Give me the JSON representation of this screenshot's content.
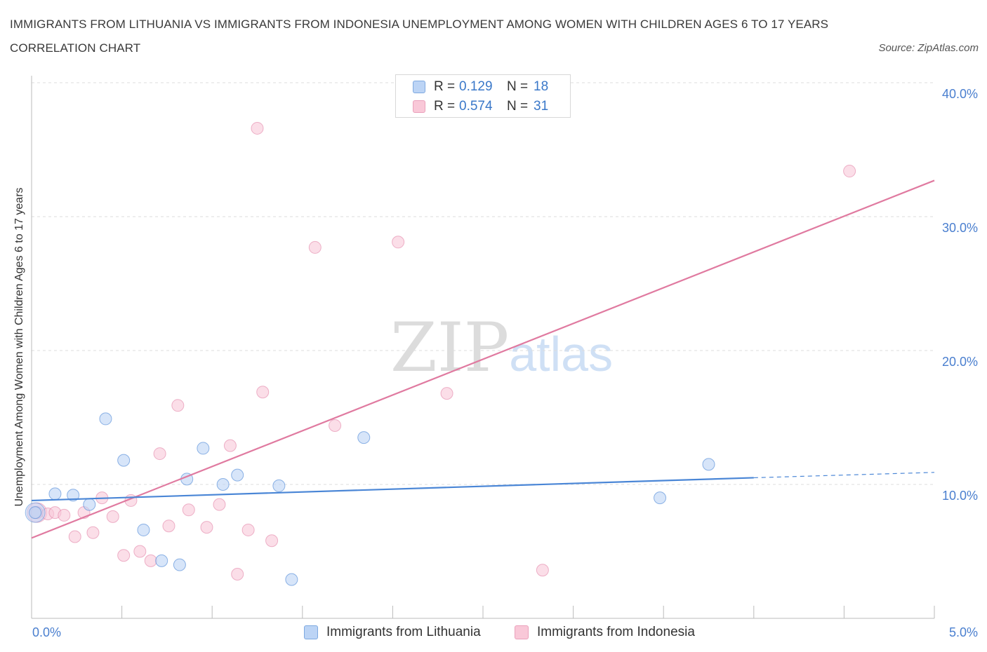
{
  "title": "IMMIGRANTS FROM LITHUANIA VS IMMIGRANTS FROM INDONESIA UNEMPLOYMENT AMONG WOMEN WITH CHILDREN AGES 6 TO 17 YEARS CORRELATION CHART",
  "source": "Source: ZipAtlas.com",
  "watermark": {
    "zip": "ZIP",
    "atlas": "atlas"
  },
  "colors": {
    "lithuania": "#4a86d6",
    "lithuania_fill": "#bcd4f5",
    "indonesia": "#e07aa0",
    "indonesia_fill": "#f9c8d8",
    "axis_text": "#4a7fcf",
    "grid": "#dddddd"
  },
  "legend": {
    "rows": [
      {
        "r_label": "R = ",
        "r_value": "0.129",
        "n_label": "N = ",
        "n_value": "18"
      },
      {
        "r_label": "R = ",
        "r_value": "0.574",
        "n_label": "N = ",
        "n_value": "31"
      }
    ]
  },
  "bottom_legend": {
    "lithuania": "Immigrants from Lithuania",
    "indonesia": "Immigrants from Indonesia"
  },
  "chart_data": {
    "type": "scatter",
    "title": "IMMIGRANTS FROM LITHUANIA VS IMMIGRANTS FROM INDONESIA UNEMPLOYMENT AMONG WOMEN WITH CHILDREN AGES 6 TO 17 YEARS CORRELATION CHART",
    "xlabel": "",
    "ylabel": "Unemployment Among Women with Children Ages 6 to 17 years",
    "xlim": [
      0,
      5
    ],
    "ylim": [
      0,
      40
    ],
    "x_tick_labels": [
      "0.0%",
      "5.0%"
    ],
    "y_ticks": [
      10,
      20,
      30,
      40
    ],
    "y_tick_labels": [
      "10.0%",
      "20.0%",
      "30.0%",
      "40.0%"
    ],
    "grid": true,
    "legend_position": "top-center",
    "series": [
      {
        "name": "Immigrants from Lithuania",
        "R": 0.129,
        "N": 18,
        "points": [
          {
            "x": 0.02,
            "y": 7.9
          },
          {
            "x": 0.13,
            "y": 9.3
          },
          {
            "x": 0.23,
            "y": 9.2
          },
          {
            "x": 0.32,
            "y": 8.5
          },
          {
            "x": 0.41,
            "y": 14.9
          },
          {
            "x": 0.51,
            "y": 11.8
          },
          {
            "x": 0.62,
            "y": 6.6
          },
          {
            "x": 0.72,
            "y": 4.3
          },
          {
            "x": 0.82,
            "y": 4.0
          },
          {
            "x": 0.86,
            "y": 10.4
          },
          {
            "x": 0.95,
            "y": 12.7
          },
          {
            "x": 1.06,
            "y": 10.0
          },
          {
            "x": 1.14,
            "y": 10.7
          },
          {
            "x": 1.37,
            "y": 9.9
          },
          {
            "x": 1.44,
            "y": 2.9
          },
          {
            "x": 1.84,
            "y": 13.5
          },
          {
            "x": 3.48,
            "y": 9.0
          },
          {
            "x": 3.75,
            "y": 11.5
          }
        ],
        "trend": {
          "x": [
            0.0,
            4.0
          ],
          "y": [
            8.8,
            10.5
          ]
        },
        "trend_dashed": {
          "x": [
            4.0,
            5.0
          ],
          "y": [
            10.5,
            10.9
          ]
        }
      },
      {
        "name": "Immigrants from Indonesia",
        "R": 0.574,
        "N": 31,
        "points": [
          {
            "x": 0.03,
            "y": 7.9
          },
          {
            "x": 0.09,
            "y": 7.8
          },
          {
            "x": 0.13,
            "y": 7.9
          },
          {
            "x": 0.18,
            "y": 7.7
          },
          {
            "x": 0.24,
            "y": 6.1
          },
          {
            "x": 0.29,
            "y": 7.9
          },
          {
            "x": 0.34,
            "y": 6.4
          },
          {
            "x": 0.39,
            "y": 9.0
          },
          {
            "x": 0.45,
            "y": 7.6
          },
          {
            "x": 0.51,
            "y": 4.7
          },
          {
            "x": 0.55,
            "y": 8.8
          },
          {
            "x": 0.6,
            "y": 5.0
          },
          {
            "x": 0.66,
            "y": 4.3
          },
          {
            "x": 0.71,
            "y": 12.3
          },
          {
            "x": 0.76,
            "y": 6.9
          },
          {
            "x": 0.81,
            "y": 15.9
          },
          {
            "x": 0.87,
            "y": 8.1
          },
          {
            "x": 0.97,
            "y": 6.8
          },
          {
            "x": 1.04,
            "y": 8.5
          },
          {
            "x": 1.1,
            "y": 12.9
          },
          {
            "x": 1.14,
            "y": 3.3
          },
          {
            "x": 1.2,
            "y": 6.6
          },
          {
            "x": 1.25,
            "y": 36.6
          },
          {
            "x": 1.28,
            "y": 16.9
          },
          {
            "x": 1.33,
            "y": 5.8
          },
          {
            "x": 1.57,
            "y": 27.7
          },
          {
            "x": 1.68,
            "y": 14.4
          },
          {
            "x": 2.03,
            "y": 28.1
          },
          {
            "x": 2.3,
            "y": 16.8
          },
          {
            "x": 2.83,
            "y": 3.6
          },
          {
            "x": 4.53,
            "y": 33.4
          }
        ],
        "trend": {
          "x": [
            0.0,
            5.0
          ],
          "y": [
            6.0,
            32.7
          ]
        }
      }
    ]
  }
}
